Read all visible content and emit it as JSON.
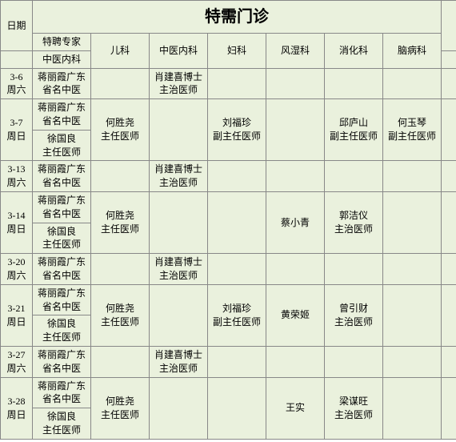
{
  "title": "特需门诊",
  "header": {
    "date": "日期",
    "spec_expert": "特聘专家",
    "spec_sub": "中医内科",
    "pediatrics": "儿科",
    "tcm_internal": "中医内科",
    "gyn": "妇科",
    "rheum": "风湿科",
    "digest": "消化科",
    "brain": "脑病科"
  },
  "rows": [
    {
      "date": "3-6\n周六",
      "a": "蒋丽霞广东省名中医",
      "b": "",
      "c": "肖建喜博士主治医师",
      "d": "",
      "e": "",
      "f": "",
      "g": ""
    },
    {
      "date": "3-7\n周日",
      "a": "蒋丽霞广东省名中医",
      "b": "何胜尧\n主任医师",
      "c": "",
      "d": "刘福珍\n副主任医师",
      "e": "",
      "f": "邱庐山\n副主任医师",
      "g": "何玉琴\n副主任医师",
      "sub": "徐国良\n主任医师"
    },
    {
      "date": "3-13\n周六",
      "a": "蒋丽霞广东省名中医",
      "b": "",
      "c": "肖建喜博士主治医师",
      "d": "",
      "e": "",
      "f": "",
      "g": ""
    },
    {
      "date": "3-14\n周日",
      "a": "蒋丽霞广东省名中医",
      "b": "何胜尧\n主任医师",
      "c": "",
      "d": "",
      "e": "蔡小青",
      "f": "郭洁仪\n主治医师",
      "g": "",
      "sub": "徐国良\n主任医师"
    },
    {
      "date": "3-20\n周六",
      "a": "蒋丽霞广东省名中医",
      "b": "",
      "c": "肖建喜博士主治医师",
      "d": "",
      "e": "",
      "f": "",
      "g": ""
    },
    {
      "date": "3-21\n周日",
      "a": "蒋丽霞广东省名中医",
      "b": "何胜尧\n主任医师",
      "c": "",
      "d": "刘福珍\n副主任医师",
      "e": "黄荣姬",
      "f": "曾引财\n主治医师",
      "g": "",
      "sub": "徐国良\n主任医师"
    },
    {
      "date": "3-27\n周六",
      "a": "蒋丽霞广东省名中医",
      "b": "",
      "c": "肖建喜博士主治医师",
      "d": "",
      "e": "",
      "f": "",
      "g": ""
    },
    {
      "date": "3-28\n周日",
      "a": "蒋丽霞广东省名中医",
      "b": "何胜尧\n主任医师",
      "c": "",
      "d": "",
      "e": "王实",
      "f": "梁谋旺\n主治医师",
      "g": "",
      "sub": "徐国良\n主任医师"
    }
  ]
}
